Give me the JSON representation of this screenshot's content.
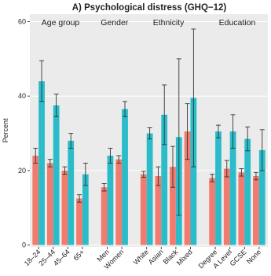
{
  "chart_data": {
    "type": "bar",
    "title": "A) Psychological distress (GHQ−12)",
    "y_label": "Percent",
    "ylim": [
      -0.5,
      62
    ],
    "yticks": [
      0,
      20,
      40,
      60
    ],
    "grid": true,
    "colors": [
      "#f07b6e",
      "#2bbcc9"
    ],
    "facets": [
      {
        "label": "Age group",
        "categories": [
          "18–24",
          "25–44",
          "45–64",
          "65+"
        ],
        "series": [
          {
            "values": [
              24,
              22,
              20,
              12.5
            ],
            "errors": [
              2,
              1,
              1,
              1
            ]
          },
          {
            "values": [
              44,
              37.5,
              28,
              19
            ],
            "errors": [
              5.5,
              3,
              2,
              3
            ]
          }
        ]
      },
      {
        "label": "Gender",
        "categories": [
          "Men",
          "Women"
        ],
        "series": [
          {
            "values": [
              15.5,
              23
            ],
            "errors": [
              1,
              1
            ]
          },
          {
            "values": [
              24,
              36.5
            ],
            "errors": [
              2,
              2
            ]
          }
        ]
      },
      {
        "label": "Ethnicity",
        "categories": [
          "White",
          "Asian",
          "Black",
          "Mixed"
        ],
        "series": [
          {
            "values": [
              19,
              18.5,
              21,
              30.5
            ],
            "errors": [
              0.8,
              2.5,
              5.5,
              7.5
            ]
          },
          {
            "values": [
              30,
              35,
              29,
              39.5
            ],
            "errors": [
              1.5,
              8,
              21,
              18.5
            ]
          }
        ]
      },
      {
        "label": "Education",
        "categories": [
          "Degree",
          "A Level",
          "GCSE",
          "None"
        ],
        "series": [
          {
            "values": [
              18,
              20.5,
              19.5,
              18.5
            ],
            "errors": [
              1,
              2.2,
              1,
              1
            ]
          },
          {
            "values": [
              30.5,
              30.5,
              28.5,
              25.5
            ],
            "errors": [
              1.7,
              4.5,
              3.2,
              5.5
            ]
          }
        ]
      }
    ]
  }
}
